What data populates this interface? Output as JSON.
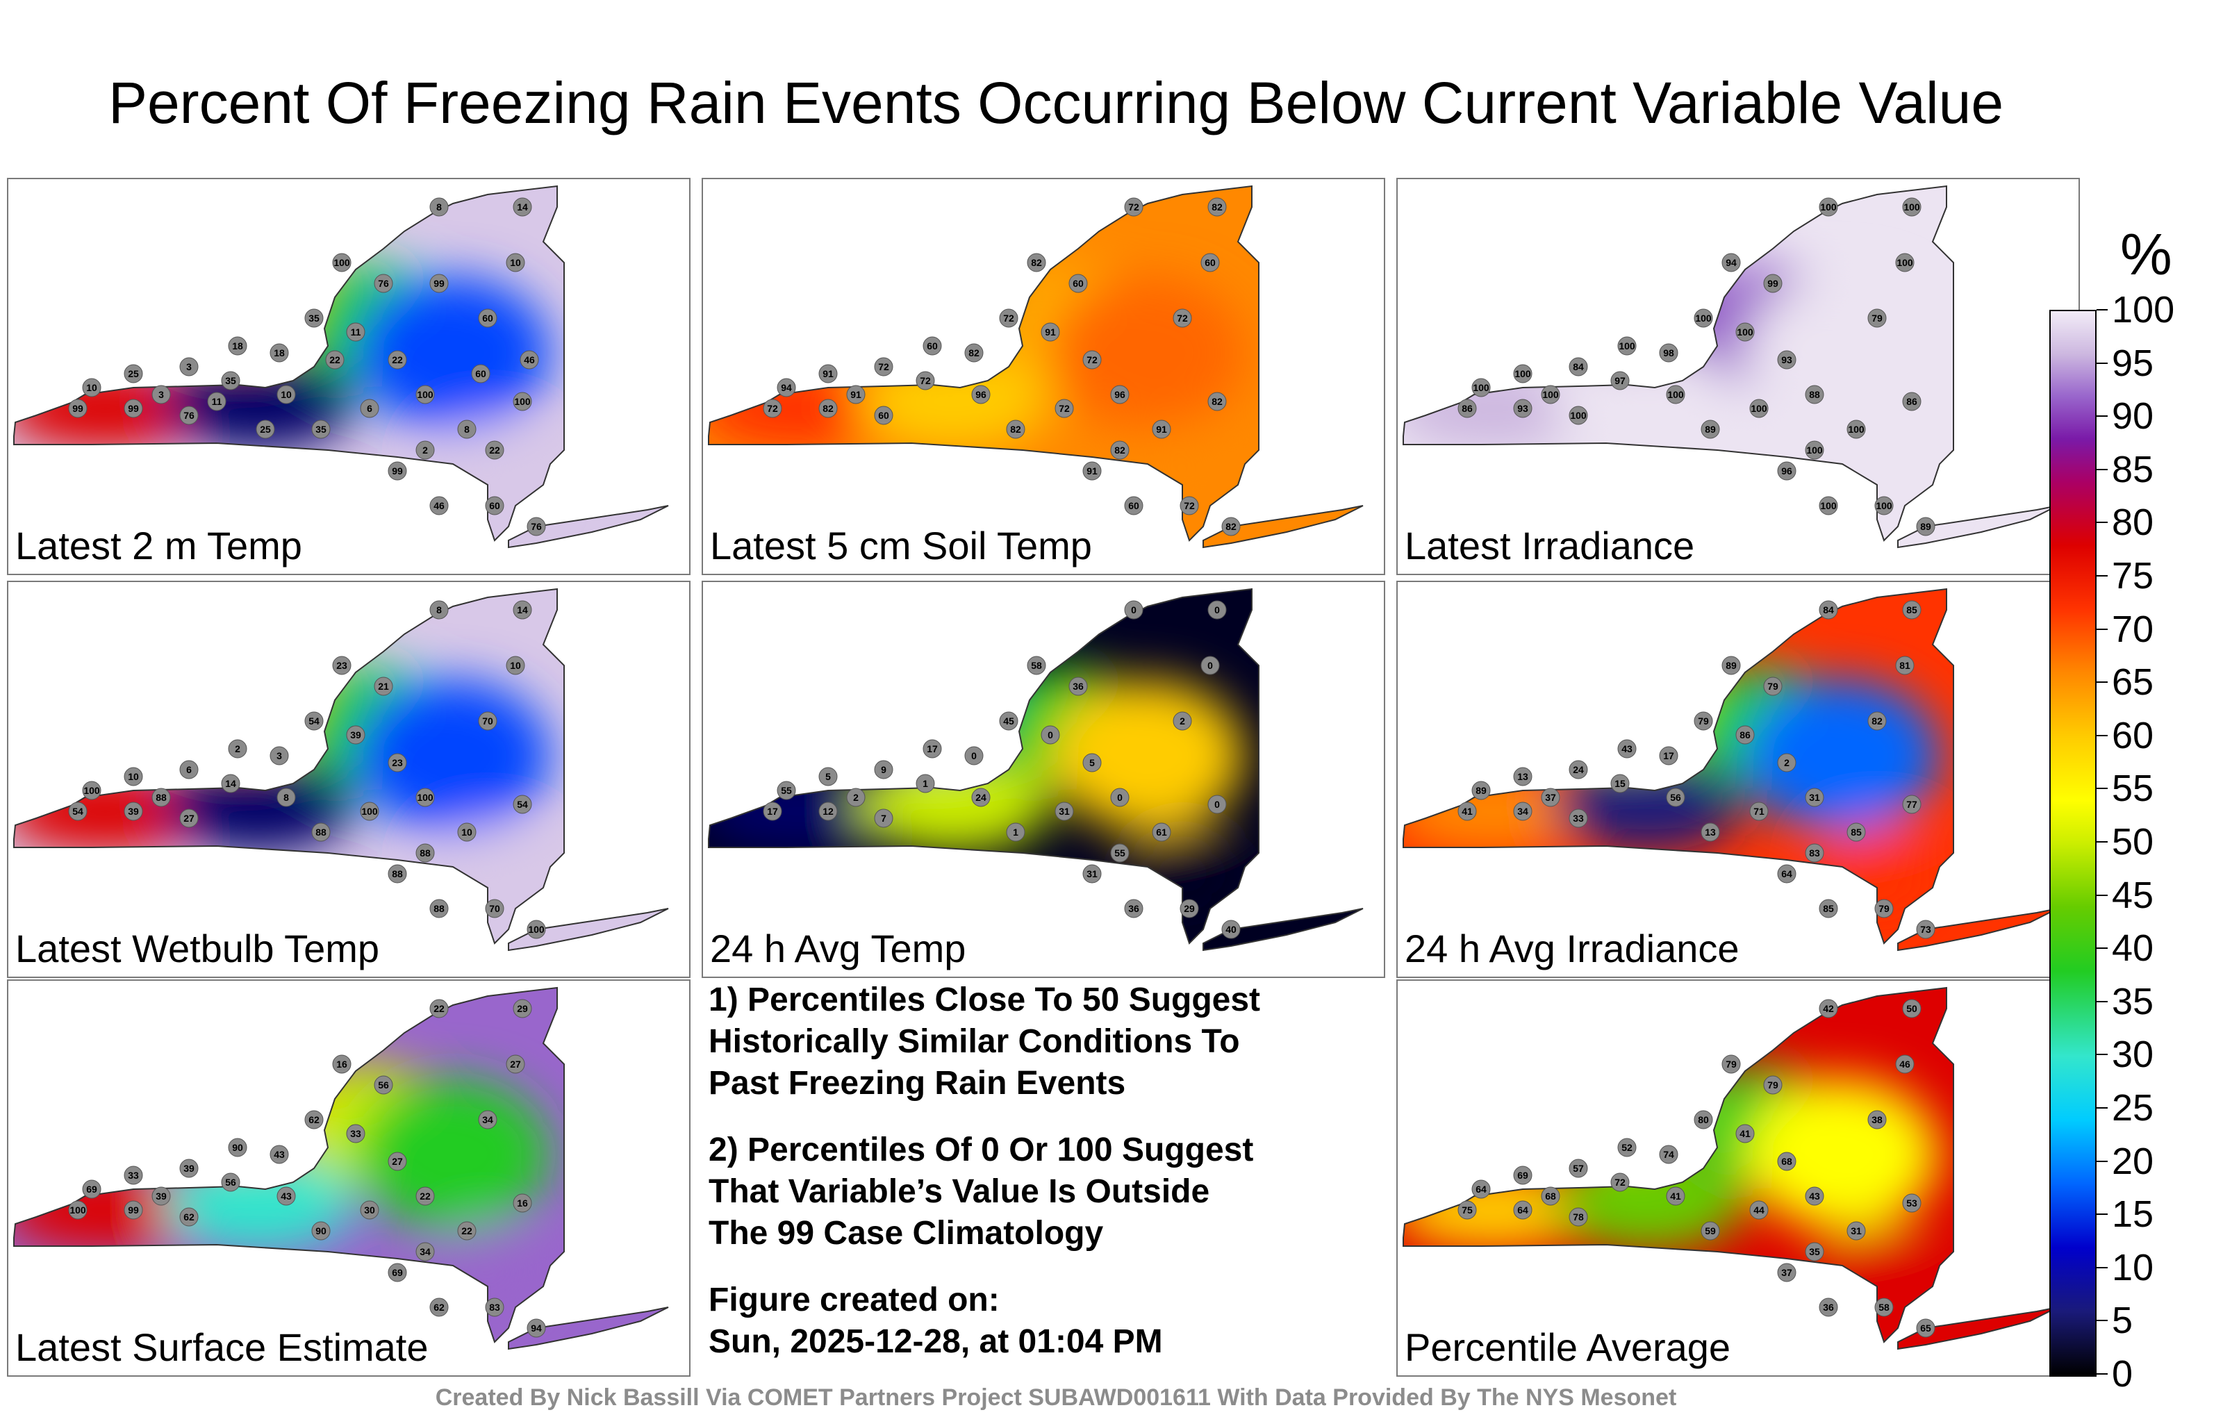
{
  "title": "Percent Of Freezing Rain Events Occurring Below Current Variable Value",
  "panels": [
    {
      "label": "Latest 2 m Temp",
      "colors": [
        "#d8c8e8",
        "#dd0000",
        "#ff8800",
        "#22cc22",
        "#0044ff",
        "#000066"
      ],
      "values": [
        "8",
        "14",
        "10",
        "11",
        "22",
        "35",
        "100",
        "60",
        "100",
        "99",
        "46",
        "60",
        "76",
        "99",
        "99",
        "76",
        "35",
        "18",
        "25",
        "3",
        "18",
        "10",
        "6",
        "2",
        "8",
        "100",
        "76",
        "35",
        "10",
        "3",
        "11",
        "25",
        "22",
        "99",
        "60",
        "46",
        "22"
      ]
    },
    {
      "label": "Latest 5 cm Soil Temp",
      "colors": [
        "#ff8800",
        "#ff3300",
        "#dd0000",
        "#ffaa00",
        "#ff6600",
        "#ffcc00"
      ],
      "values": [
        "72",
        "82",
        "60",
        "91",
        "72",
        "82",
        "96",
        "72",
        "82",
        "91",
        "60",
        "72",
        "82",
        "72",
        "82",
        "60",
        "72",
        "82",
        "91",
        "72",
        "60",
        "96",
        "72",
        "82",
        "91",
        "82",
        "60",
        "72",
        "94",
        "91"
      ]
    },
    {
      "label": "Latest Irradiance",
      "colors": [
        "#ece4f2",
        "#cdb8e0",
        "#7a1aa8",
        "#9966cc",
        "#ece4f2",
        "#ece4f2"
      ],
      "values": [
        "100",
        "100",
        "100",
        "100",
        "93",
        "89",
        "88",
        "79",
        "86",
        "96",
        "100",
        "100",
        "89",
        "86",
        "93",
        "100",
        "97",
        "98",
        "100",
        "84",
        "100",
        "100",
        "100",
        "100",
        "100",
        "94",
        "99",
        "100",
        "100",
        "100"
      ]
    },
    {
      "label": "Latest Wetbulb Temp",
      "colors": [
        "#d8c8e8",
        "#dd0000",
        "#ff8800",
        "#22cc22",
        "#0044ff",
        "#000066"
      ],
      "values": [
        "8",
        "14",
        "10",
        "39",
        "23",
        "88",
        "100",
        "70",
        "54",
        "88",
        "88",
        "70",
        "100",
        "54",
        "39",
        "27",
        "14",
        "3",
        "10",
        "6",
        "2",
        "8",
        "100",
        "88",
        "10",
        "23",
        "21",
        "54",
        "100",
        "88"
      ]
    },
    {
      "label": "24 h Avg Temp",
      "colors": [
        "#000022",
        "#000066",
        "#0033cc",
        "#22cc22",
        "#ffcc00",
        "#ccee00"
      ],
      "values": [
        "0",
        "0",
        "0",
        "0",
        "5",
        "1",
        "0",
        "2",
        "0",
        "31",
        "36",
        "29",
        "40",
        "17",
        "12",
        "7",
        "1",
        "0",
        "5",
        "9",
        "17",
        "24",
        "31",
        "55",
        "61",
        "58",
        "36",
        "45",
        "55",
        "2"
      ]
    },
    {
      "label": "24 h Avg Irradiance",
      "colors": [
        "#ff3300",
        "#ff8800",
        "#ccee00",
        "#22cc22",
        "#0066ff",
        "#1a1a7a"
      ],
      "values": [
        "84",
        "85",
        "81",
        "86",
        "2",
        "13",
        "31",
        "82",
        "77",
        "64",
        "85",
        "79",
        "73",
        "41",
        "34",
        "33",
        "15",
        "17",
        "13",
        "24",
        "43",
        "56",
        "71",
        "83",
        "85",
        "89",
        "79",
        "79",
        "89",
        "37"
      ]
    },
    {
      "label": "Percentile Average",
      "colors": [
        "#dd0000",
        "#ffcc00",
        "#ccee00",
        "#22cc22",
        "#ffff00",
        "#66cc00"
      ],
      "values": [
        "42",
        "50",
        "46",
        "41",
        "68",
        "59",
        "43",
        "38",
        "53",
        "37",
        "36",
        "58",
        "65",
        "75",
        "64",
        "78",
        "72",
        "74",
        "69",
        "57",
        "52",
        "41",
        "44",
        "35",
        "31",
        "79",
        "79",
        "80",
        "64",
        "68"
      ]
    },
    {
      "label": "Latest Surface Estimate",
      "colors": [
        "#9966cc",
        "#dd0000",
        "#ff8800",
        "#ccee00",
        "#22cc22",
        "#33e6cc"
      ],
      "values": [
        "22",
        "29",
        "27",
        "33",
        "27",
        "90",
        "22",
        "34",
        "16",
        "69",
        "62",
        "83",
        "94",
        "100",
        "99",
        "62",
        "56",
        "43",
        "33",
        "39",
        "90",
        "43",
        "30",
        "34",
        "22",
        "16",
        "56",
        "62",
        "69",
        "39"
      ]
    }
  ],
  "notes": {
    "line1": "1) Percentiles Close To 50 Suggest",
    "line2": "Historically Similar Conditions To",
    "line3": "Past Freezing Rain Events",
    "line4": "2) Percentiles Of 0 Or 100 Suggest",
    "line5": "That Variable’s Value Is Outside",
    "line6": "The 99 Case Climatology",
    "line7": "Figure created on:",
    "line8": "Sun, 2025-12-28, at 01:04 PM"
  },
  "legend": {
    "unit": "%",
    "ticks": [
      "0",
      "5",
      "10",
      "15",
      "20",
      "25",
      "30",
      "35",
      "40",
      "45",
      "50",
      "55",
      "60",
      "65",
      "70",
      "75",
      "80",
      "85",
      "90",
      "95",
      "100"
    ]
  },
  "credit": "Created By Nick Bassill Via COMET Partners Project SUBAWD001611 With Data Provided By The NYS Mesonet"
}
